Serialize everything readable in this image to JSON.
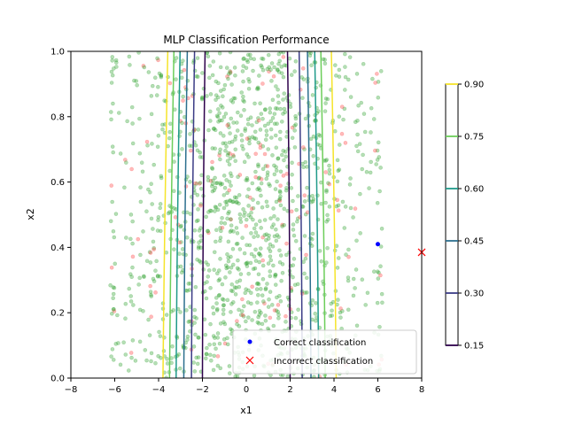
{
  "chart_data": {
    "type": "scatter",
    "title": "MLP Classification Performance",
    "xlabel": "x1",
    "ylabel": "x2",
    "xlim": [
      -8,
      8
    ],
    "ylim": [
      0,
      1
    ],
    "xticks": [
      "−8",
      "−6",
      "−4",
      "−2",
      "0",
      "2",
      "4",
      "6",
      "8"
    ],
    "xtick_values": [
      -8,
      -6,
      -4,
      -2,
      0,
      2,
      4,
      6,
      8
    ],
    "yticks": [
      "0.0",
      "0.2",
      "0.4",
      "0.6",
      "0.8",
      "1.0"
    ],
    "ytick_values": [
      0,
      0.2,
      0.4,
      0.6,
      0.8,
      1.0
    ],
    "grid": false,
    "legend_position": "lower-right",
    "legend": [
      {
        "label": "Correct classification",
        "marker": "dot",
        "color": "#0000ff"
      },
      {
        "label": "Incorrect classification",
        "marker": "x",
        "color": "#ff0000"
      }
    ],
    "highlight_points": [
      {
        "series": "Correct classification",
        "x": 6.0,
        "y": 0.41,
        "color": "#0000ff",
        "marker": "dot"
      },
      {
        "series": "Incorrect classification",
        "x": 8.0,
        "y": 0.385,
        "color": "#ff0000",
        "marker": "x"
      }
    ],
    "background_scatter": {
      "x_range": [
        -6.2,
        6.2
      ],
      "y_range": [
        0,
        1
      ],
      "approx_count": 1400,
      "correct_color": "#2ca02c",
      "incorrect_color": "#ff3b3b",
      "alpha": 0.35
    },
    "contour_levels": [
      {
        "level": 0.15,
        "color": "#2d004b",
        "x_left": -2.0,
        "x_right": 2.0
      },
      {
        "level": 0.3,
        "color": "#3b3c86",
        "x_left": -2.5,
        "x_right": 2.55
      },
      {
        "level": 0.45,
        "color": "#2c6f8e",
        "x_left": -2.85,
        "x_right": 2.95
      },
      {
        "level": 0.6,
        "color": "#1f9a8a",
        "x_left": -3.2,
        "x_right": 3.3
      },
      {
        "level": 0.75,
        "color": "#6cce5a",
        "x_left": -3.5,
        "x_right": 3.6
      },
      {
        "level": 0.9,
        "color": "#f5e42a",
        "x_left": -3.8,
        "x_right": 4.1
      }
    ],
    "colorbar": {
      "ticks": [
        "0.15",
        "0.30",
        "0.45",
        "0.60",
        "0.75",
        "0.90"
      ],
      "values": [
        0.15,
        0.3,
        0.45,
        0.6,
        0.75,
        0.9
      ],
      "colors": [
        "#2d004b",
        "#3b3c86",
        "#2c6f8e",
        "#1f9a8a",
        "#6cce5a",
        "#f5e42a"
      ]
    }
  }
}
